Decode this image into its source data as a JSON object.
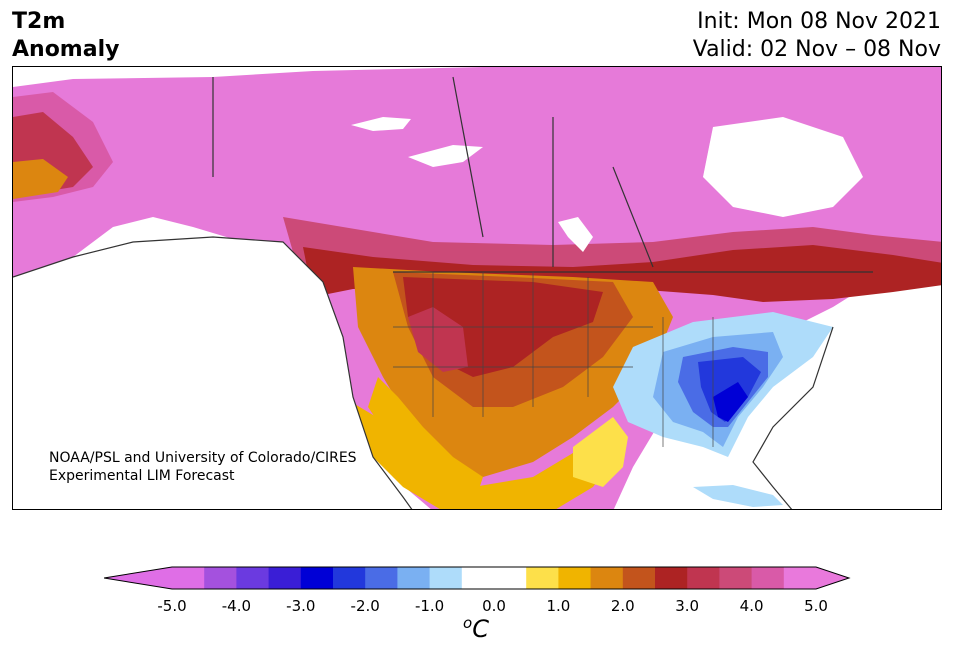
{
  "header": {
    "variable": "T2m",
    "quantity": "Anomaly",
    "init": "Init: Mon 08 Nov 2021",
    "valid": "Valid: 02 Nov – 08 Nov"
  },
  "credit": {
    "line1": "NOAA/PSL and University of Colorado/CIRES",
    "line2": "Experimental LIM Forecast"
  },
  "colorbar": {
    "tick_labels": [
      "-5.0",
      "-4.0",
      "-3.0",
      "-2.0",
      "-1.0",
      "0.0",
      "1.0",
      "2.0",
      "3.0",
      "4.0",
      "5.0"
    ],
    "unit_base": "C",
    "unit_sup": "o",
    "colors": [
      "#df6ee6",
      "#a451de",
      "#6b3ae0",
      "#3a1ed6",
      "#0000d6",
      "#2238dc",
      "#4a6ce6",
      "#7ab0f2",
      "#aedcfa",
      "#ffffff",
      "#ffffff",
      "#fde04a",
      "#f0b400",
      "#dc8610",
      "#c3541c",
      "#ad2323",
      "#c03550",
      "#cc4a78",
      "#d95aa8",
      "#e979dc"
    ]
  }
}
